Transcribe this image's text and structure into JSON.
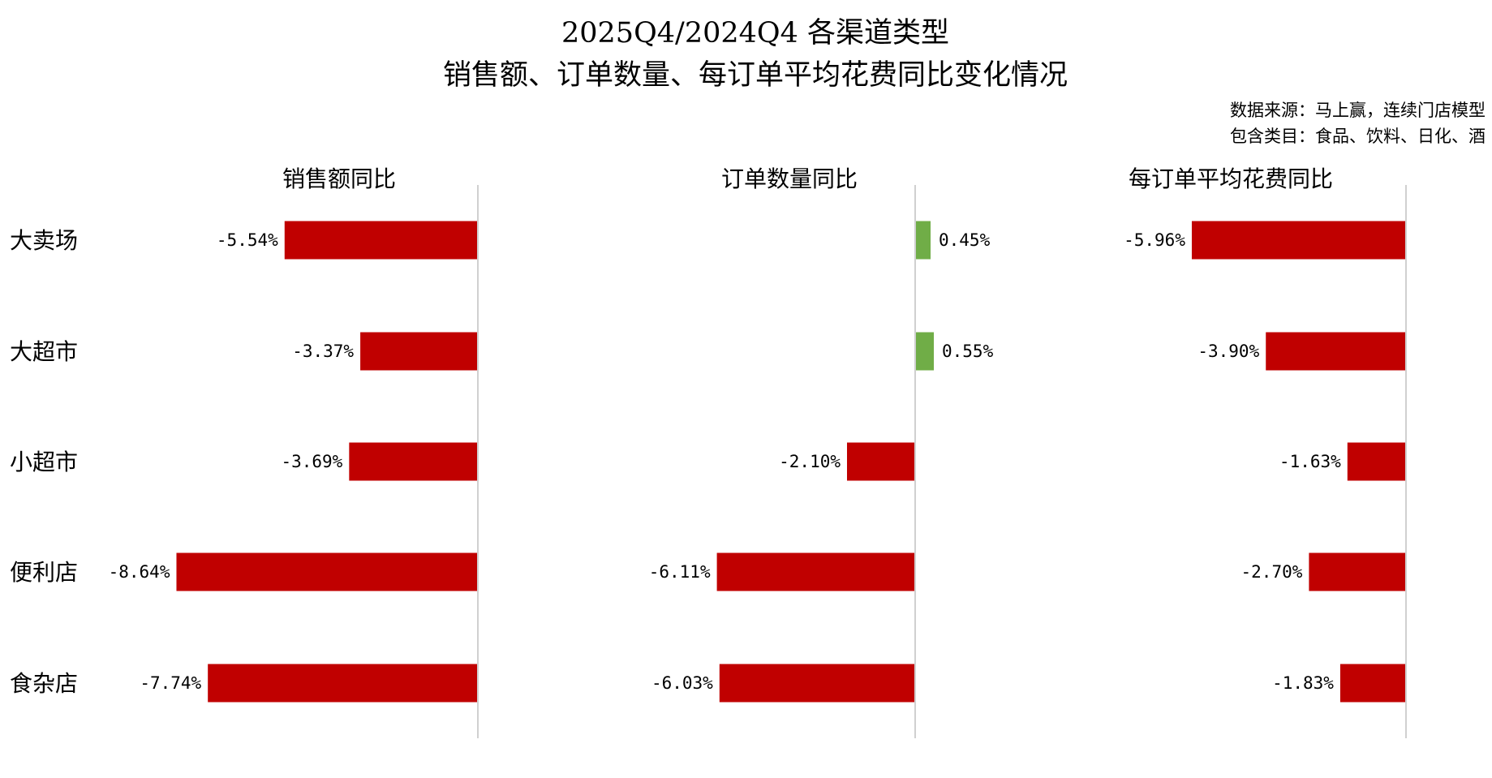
{
  "chart_data": {
    "type": "bar",
    "title": [
      "2025Q4/2024Q4 各渠道类型",
      "销售额、订单数量、每订单平均花费同比变化情况"
    ],
    "notes": [
      "数据来源：马上赢，连续门店模型",
      "包含类目：食品、饮料、日化、酒"
    ],
    "categories": [
      "大卖场",
      "大超市",
      "小超市",
      "便利店",
      "食杂店"
    ],
    "panels": [
      {
        "title": "销售额同比",
        "values": [
          -5.54,
          -3.37,
          -3.69,
          -8.64,
          -7.74
        ],
        "labels": [
          "-5.54%",
          "-3.37%",
          "-3.69%",
          "-8.64%",
          "-7.74%"
        ]
      },
      {
        "title": "订单数量同比",
        "values": [
          0.45,
          0.55,
          -2.1,
          -6.11,
          -6.03
        ],
        "labels": [
          "0.45%",
          "0.55%",
          "-2.10%",
          "-6.11%",
          "-6.03%"
        ]
      },
      {
        "title": "每订单平均花费同比",
        "values": [
          -5.96,
          -3.9,
          -1.63,
          -2.7,
          -1.83
        ],
        "labels": [
          "-5.96%",
          "-3.90%",
          "-1.63%",
          "-2.70%",
          "-1.83%"
        ]
      }
    ],
    "colors": {
      "negative": "#C00000",
      "positive": "#70AD47",
      "axis": "#D0D0D0"
    },
    "grid": false,
    "legend": "none"
  }
}
